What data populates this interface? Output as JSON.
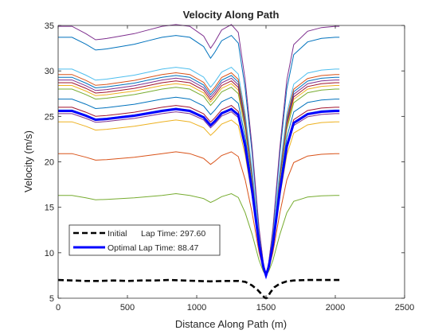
{
  "chart_data": {
    "type": "line",
    "title": "Velocity Along Path",
    "xlabel": "Distance Along Path (m)",
    "ylabel": "Velocity (m/s)",
    "xlim": [
      0,
      2500
    ],
    "ylim": [
      5,
      35
    ],
    "xticks": [
      0,
      500,
      1000,
      1500,
      2000,
      2500
    ],
    "yticks": [
      5,
      10,
      15,
      20,
      25,
      30,
      35
    ],
    "grid": false,
    "legend_position": "lower-left",
    "legend": [
      {
        "label": "Initial      Lap Time: 297.60",
        "color": "#000000",
        "style": "dashed"
      },
      {
        "label": "Optimal Lap Time: 88.47",
        "color": "#0000ff",
        "style": "solid"
      }
    ],
    "shape_x": [
      0,
      100,
      200,
      270,
      350,
      450,
      550,
      650,
      750,
      850,
      950,
      1050,
      1100,
      1130,
      1180,
      1250,
      1300,
      1350,
      1400,
      1450,
      1480,
      1500,
      1520,
      1550,
      1600,
      1650,
      1700,
      1800,
      1900,
      2000,
      2030
    ],
    "shape_y": [
      0,
      0,
      -0.6,
      -1.1,
      -1.0,
      -0.8,
      -0.6,
      -0.3,
      0,
      0.2,
      0,
      -0.8,
      -1.8,
      -1.3,
      -0.3,
      0.2,
      -0.5,
      -4,
      -9,
      -15,
      -17.5,
      -18.5,
      -17.5,
      -15,
      -9,
      -4,
      -1.5,
      -0.4,
      -0.1,
      0,
      0
    ],
    "min_offset": 2.5,
    "series_iterations": [
      {
        "v0": 16.3,
        "color": "#77ac30",
        "width": 1
      },
      {
        "v0": 20.9,
        "color": "#d95319",
        "width": 1
      },
      {
        "v0": 24.4,
        "color": "#edb120",
        "width": 1
      },
      {
        "v0": 25.3,
        "color": "#7e2f8e",
        "width": 1
      },
      {
        "v0": 25.7,
        "color": "#4dbeee",
        "width": 1
      },
      {
        "v0": 26.0,
        "color": "#a2142f",
        "width": 1
      },
      {
        "v0": 26.9,
        "color": "#0072bd",
        "width": 1
      },
      {
        "v0": 28.0,
        "color": "#77ac30",
        "width": 1
      },
      {
        "v0": 28.4,
        "color": "#edb120",
        "width": 1
      },
      {
        "v0": 28.7,
        "color": "#a2142f",
        "width": 1
      },
      {
        "v0": 29.0,
        "color": "#7e2f8e",
        "width": 1
      },
      {
        "v0": 29.3,
        "color": "#0072bd",
        "width": 1
      },
      {
        "v0": 29.6,
        "color": "#d95319",
        "width": 1
      },
      {
        "v0": 30.2,
        "color": "#4dbeee",
        "width": 1
      },
      {
        "v0": 33.7,
        "color": "#0072bd",
        "width": 1
      },
      {
        "v0": 34.9,
        "color": "#7e2f8e",
        "width": 1
      }
    ],
    "optimal": {
      "v0": 25.6,
      "color": "#0000ff",
      "width": 3
    },
    "initial": {
      "x": [
        0,
        100,
        200,
        300,
        400,
        500,
        600,
        700,
        800,
        900,
        1000,
        1100,
        1200,
        1300,
        1350,
        1400,
        1440,
        1470,
        1490,
        1500,
        1510,
        1530,
        1560,
        1600,
        1650,
        1700,
        1800,
        1900,
        2000,
        2030
      ],
      "y": [
        7.0,
        6.95,
        6.9,
        6.9,
        6.95,
        6.9,
        6.95,
        6.95,
        7.0,
        6.95,
        6.9,
        6.85,
        6.9,
        6.9,
        6.8,
        6.4,
        5.9,
        5.4,
        5.05,
        5.0,
        5.05,
        5.6,
        6.2,
        6.6,
        6.85,
        6.95,
        7.0,
        7.0,
        7.0,
        7.0
      ],
      "color": "#000000",
      "width": 2.6
    }
  }
}
